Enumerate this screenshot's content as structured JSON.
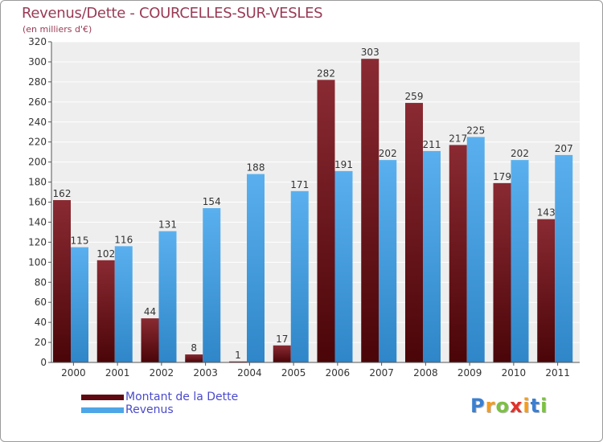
{
  "header": {
    "title": "Revenus/Dette - COURCELLES-SUR-VESLES",
    "subtitle": "(en milliers d'€)"
  },
  "chart_data": {
    "type": "bar",
    "title": "Revenus/Dette - COURCELLES-SUR-VESLES",
    "subtitle": "(en milliers d'€)",
    "categories": [
      "2000",
      "2001",
      "2002",
      "2003",
      "2004",
      "2005",
      "2006",
      "2007",
      "2008",
      "2009",
      "2010",
      "2011"
    ],
    "series": [
      {
        "name": "Montant de la Dette",
        "color": "#7a1a22",
        "values": [
          162,
          102,
          44,
          8,
          1,
          17,
          282,
          303,
          259,
          217,
          179,
          143
        ]
      },
      {
        "name": "Revenus",
        "color": "#4ea6e6",
        "values": [
          115,
          116,
          131,
          154,
          188,
          171,
          191,
          202,
          211,
          225,
          202,
          207
        ]
      }
    ],
    "ylim": [
      0,
      320
    ],
    "yticks": [
      0,
      20,
      40,
      60,
      80,
      100,
      120,
      140,
      160,
      180,
      200,
      220,
      240,
      260,
      280,
      300,
      320
    ],
    "grid": true,
    "legend_position": "bottom-left"
  },
  "legend": {
    "items": [
      {
        "label": "Montant de la Dette",
        "color": "#5e0a10"
      },
      {
        "label": "Revenus",
        "color": "#4ea6e6"
      }
    ]
  },
  "logo": {
    "letters": [
      "P",
      "r",
      "o",
      "x",
      "i",
      "t",
      "i"
    ],
    "colors": [
      "#3b7fd1",
      "#f39c1f",
      "#7cc142",
      "#e0322a",
      "#f39c1f",
      "#3b7fd1",
      "#7cc142"
    ]
  }
}
